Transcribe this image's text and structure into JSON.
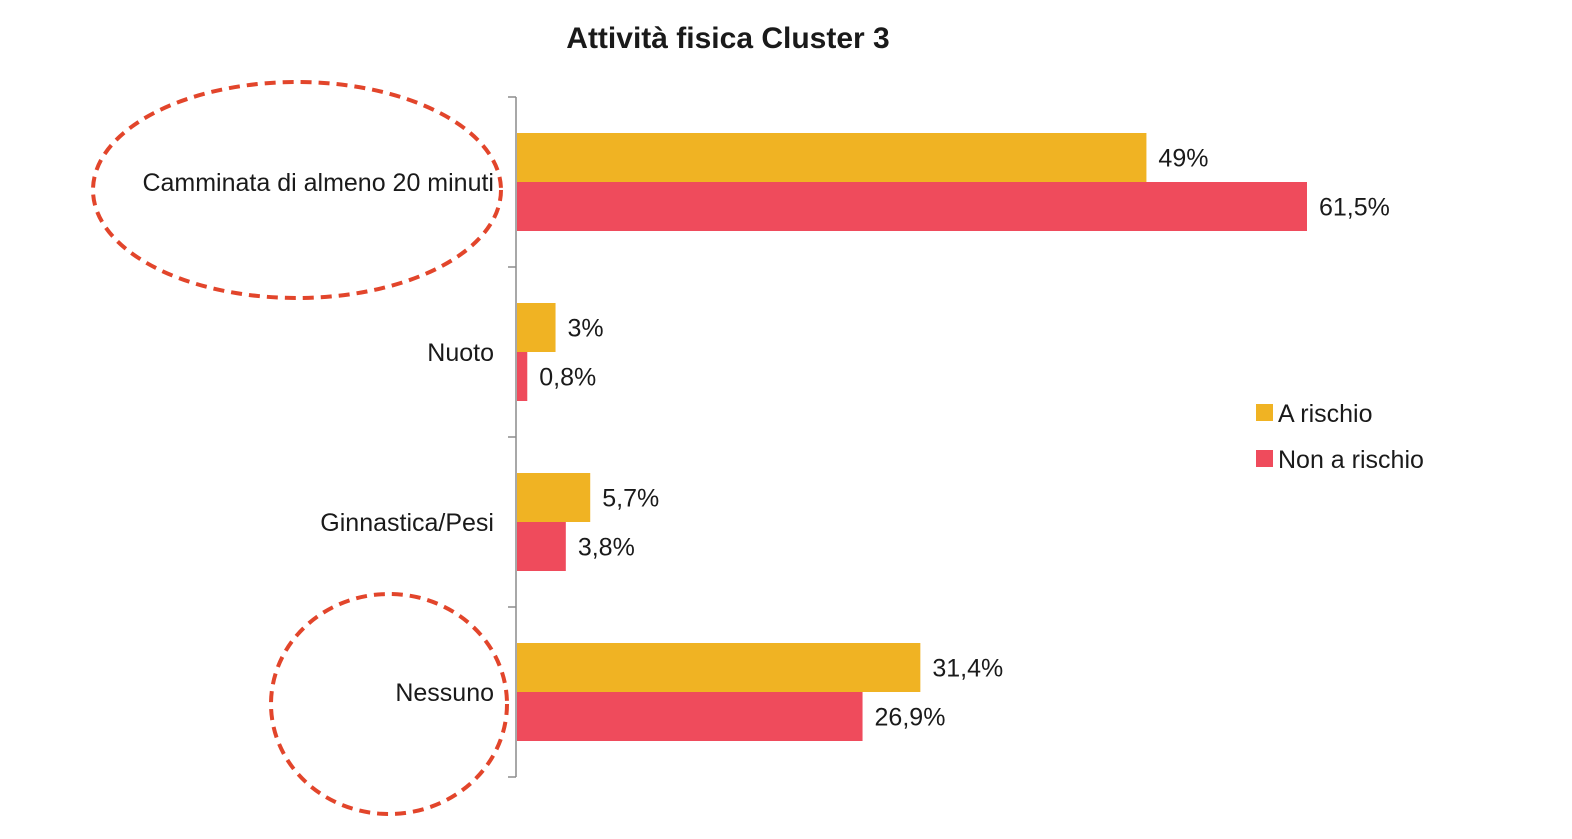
{
  "chart_data": {
    "type": "bar",
    "orientation": "horizontal",
    "title": "Attività fisica Cluster 3",
    "categories": [
      "Camminata di almeno 20 minuti",
      "Nuoto",
      "Ginnastica/Pesi",
      "Nessuno"
    ],
    "series": [
      {
        "name": "A rischio",
        "color": "#f0b323",
        "values": [
          49,
          3,
          5.7,
          31.4
        ],
        "labels": [
          "49%",
          "3%",
          "5,7%",
          "31,4%"
        ]
      },
      {
        "name": "Non a rischio",
        "color": "#ef4b5c",
        "values": [
          61.5,
          0.8,
          3.8,
          26.9
        ],
        "labels": [
          "61,5%",
          "0,8%",
          "3,8%",
          "26,9%"
        ]
      }
    ],
    "unit": "%",
    "xlim": [
      0,
      100
    ],
    "grid": false,
    "legend_position": "right",
    "annotations": [
      {
        "type": "dashed-ellipse",
        "target": "Camminata di almeno 20 minuti",
        "color": "#e2452b"
      },
      {
        "type": "dashed-ellipse",
        "target": "Nessuno",
        "color": "#e2452b"
      }
    ]
  }
}
